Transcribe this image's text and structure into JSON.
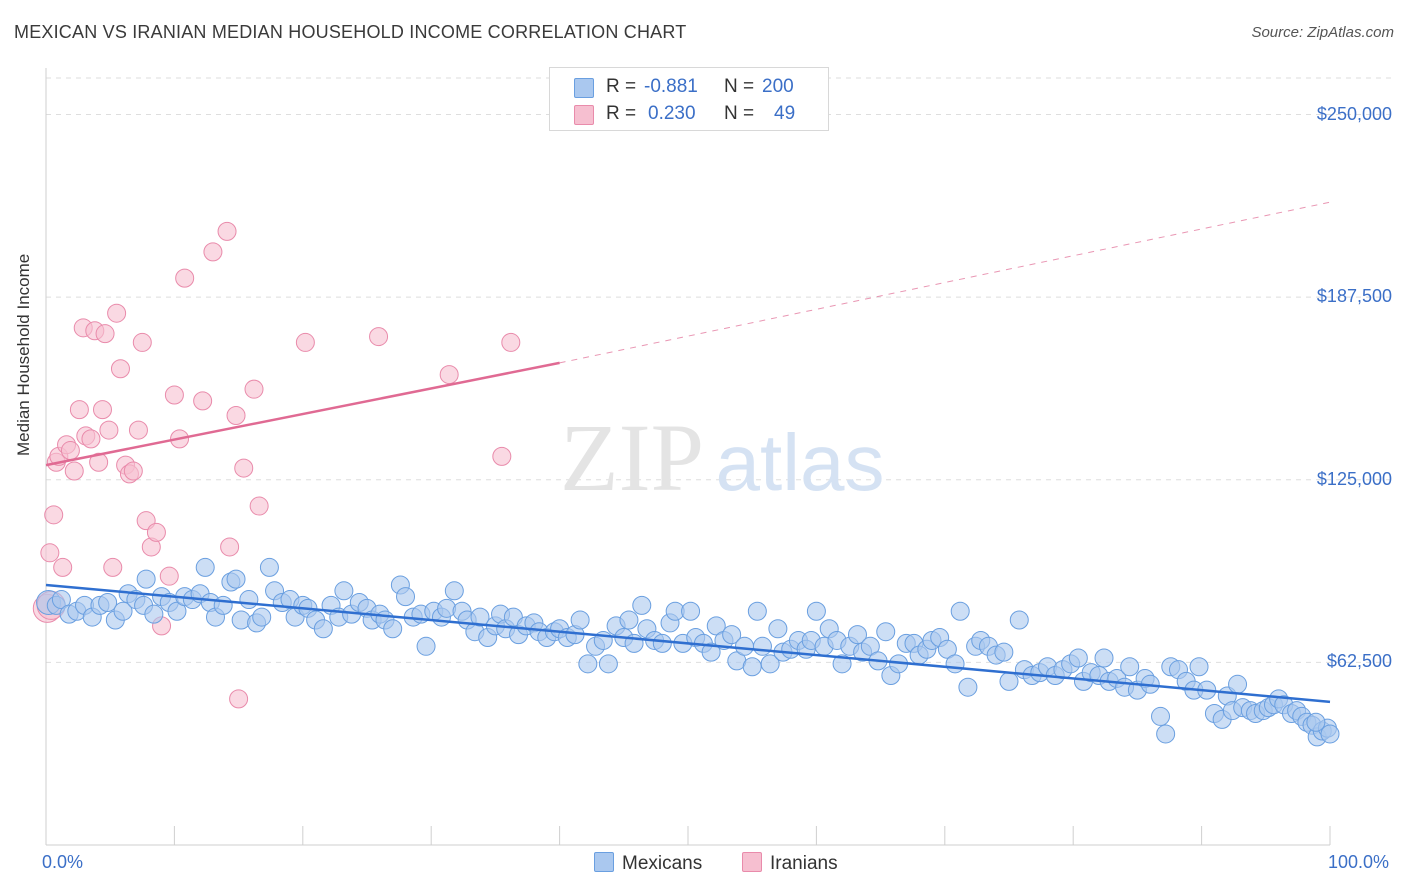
{
  "title": "MEXICAN VS IRANIAN MEDIAN HOUSEHOLD INCOME CORRELATION CHART",
  "source": "Source: ZipAtlas.com",
  "watermark": {
    "zip": "ZIP",
    "atlas": "atlas"
  },
  "colors": {
    "blue_fill": "#aac8ef",
    "blue_stroke": "#6a9fe0",
    "blue_line": "#2f6fd0",
    "pink_fill": "#f6bfd0",
    "pink_stroke": "#e98bab",
    "pink_line": "#e06a93",
    "grid": "#dedede",
    "tick_text": "#3b6fc7"
  },
  "legend": {
    "rows": [
      {
        "r_label": "R =",
        "r_value": "-0.881",
        "n_label": "N =",
        "n_value": "200",
        "color": "#aac8ef",
        "stroke": "#6a9fe0"
      },
      {
        "r_label": "R =",
        "r_value": "0.230",
        "n_label": "N =",
        "n_value": "49",
        "color": "#f6bfd0",
        "stroke": "#e98bab"
      }
    ]
  },
  "bottom_legend": [
    {
      "label": "Mexicans",
      "color": "#aac8ef",
      "stroke": "#6a9fe0"
    },
    {
      "label": "Iranians",
      "color": "#f6bfd0",
      "stroke": "#e98bab"
    }
  ],
  "chart_data": {
    "type": "scatter",
    "title": "MEXICAN VS IRANIAN MEDIAN HOUSEHOLD INCOME CORRELATION CHART",
    "xlabel": "",
    "ylabel": "Median Household Income",
    "xlim": [
      0,
      100
    ],
    "ylim": [
      0,
      262500
    ],
    "x_tick_labels": [
      "0.0%",
      "100.0%"
    ],
    "y_ticks": [
      {
        "value": 62500,
        "label": "$62,500"
      },
      {
        "value": 125000,
        "label": "$125,000"
      },
      {
        "value": 187500,
        "label": "$187,500"
      },
      {
        "value": 250000,
        "label": "$250,000"
      }
    ],
    "grid": true,
    "legend_position": "top-center",
    "series": [
      {
        "name": "Mexicans",
        "r": -0.881,
        "n": 200,
        "trend": {
          "x0": 0,
          "y0": 89000,
          "x1": 100,
          "y1": 49000
        },
        "points": [
          [
            0.2,
            83000
          ],
          [
            0.8,
            82000
          ],
          [
            1.2,
            84000
          ],
          [
            1.8,
            79000
          ],
          [
            2.4,
            80000
          ],
          [
            3.0,
            82000
          ],
          [
            3.6,
            78000
          ],
          [
            4.2,
            82000
          ],
          [
            4.8,
            83000
          ],
          [
            5.4,
            77000
          ],
          [
            6.0,
            80000
          ],
          [
            6.4,
            86000
          ],
          [
            7.0,
            84000
          ],
          [
            7.6,
            82000
          ],
          [
            7.8,
            91000
          ],
          [
            8.4,
            79000
          ],
          [
            9.0,
            85000
          ],
          [
            9.6,
            83000
          ],
          [
            10.2,
            80000
          ],
          [
            10.8,
            85000
          ],
          [
            11.4,
            84000
          ],
          [
            12.0,
            86000
          ],
          [
            12.4,
            95000
          ],
          [
            12.8,
            83000
          ],
          [
            13.2,
            78000
          ],
          [
            13.8,
            82000
          ],
          [
            14.4,
            90000
          ],
          [
            14.8,
            91000
          ],
          [
            15.2,
            77000
          ],
          [
            15.8,
            84000
          ],
          [
            16.4,
            76000
          ],
          [
            16.8,
            78000
          ],
          [
            17.4,
            95000
          ],
          [
            17.8,
            87000
          ],
          [
            18.4,
            83000
          ],
          [
            19.0,
            84000
          ],
          [
            19.4,
            78000
          ],
          [
            20.0,
            82000
          ],
          [
            20.4,
            81000
          ],
          [
            21.0,
            77000
          ],
          [
            21.6,
            74000
          ],
          [
            22.2,
            82000
          ],
          [
            22.8,
            78000
          ],
          [
            23.2,
            87000
          ],
          [
            23.8,
            79000
          ],
          [
            24.4,
            83000
          ],
          [
            25.0,
            81000
          ],
          [
            25.4,
            77000
          ],
          [
            26.0,
            79000
          ],
          [
            26.4,
            77000
          ],
          [
            27.0,
            74000
          ],
          [
            27.6,
            89000
          ],
          [
            28.0,
            85000
          ],
          [
            28.6,
            78000
          ],
          [
            29.2,
            79000
          ],
          [
            29.6,
            68000
          ],
          [
            30.2,
            80000
          ],
          [
            30.8,
            78000
          ],
          [
            31.2,
            81000
          ],
          [
            31.8,
            87000
          ],
          [
            32.4,
            80000
          ],
          [
            32.8,
            77000
          ],
          [
            33.4,
            73000
          ],
          [
            33.8,
            78000
          ],
          [
            34.4,
            71000
          ],
          [
            35.0,
            75000
          ],
          [
            35.4,
            79000
          ],
          [
            35.8,
            74000
          ],
          [
            36.4,
            78000
          ],
          [
            36.8,
            72000
          ],
          [
            37.4,
            75000
          ],
          [
            38.0,
            76000
          ],
          [
            38.4,
            73000
          ],
          [
            39.0,
            71000
          ],
          [
            39.6,
            73000
          ],
          [
            40.0,
            74000
          ],
          [
            40.6,
            71000
          ],
          [
            41.2,
            72000
          ],
          [
            41.6,
            77000
          ],
          [
            42.2,
            62000
          ],
          [
            42.8,
            68000
          ],
          [
            43.4,
            70000
          ],
          [
            43.8,
            62000
          ],
          [
            44.4,
            75000
          ],
          [
            45.0,
            71000
          ],
          [
            45.4,
            77000
          ],
          [
            45.8,
            69000
          ],
          [
            46.4,
            82000
          ],
          [
            46.8,
            74000
          ],
          [
            47.4,
            70000
          ],
          [
            48.0,
            69000
          ],
          [
            48.6,
            76000
          ],
          [
            49.0,
            80000
          ],
          [
            49.6,
            69000
          ],
          [
            50.2,
            80000
          ],
          [
            50.6,
            71000
          ],
          [
            51.2,
            69000
          ],
          [
            51.8,
            66000
          ],
          [
            52.2,
            75000
          ],
          [
            52.8,
            70000
          ],
          [
            53.4,
            72000
          ],
          [
            53.8,
            63000
          ],
          [
            54.4,
            68000
          ],
          [
            55.0,
            61000
          ],
          [
            55.4,
            80000
          ],
          [
            55.8,
            68000
          ],
          [
            56.4,
            62000
          ],
          [
            57.0,
            74000
          ],
          [
            57.4,
            66000
          ],
          [
            58.0,
            67000
          ],
          [
            58.6,
            70000
          ],
          [
            59.2,
            67000
          ],
          [
            59.6,
            70000
          ],
          [
            60.0,
            80000
          ],
          [
            60.6,
            68000
          ],
          [
            61.0,
            74000
          ],
          [
            61.6,
            70000
          ],
          [
            62.0,
            62000
          ],
          [
            62.6,
            68000
          ],
          [
            63.2,
            72000
          ],
          [
            63.6,
            66000
          ],
          [
            64.2,
            68000
          ],
          [
            64.8,
            63000
          ],
          [
            65.4,
            73000
          ],
          [
            65.8,
            58000
          ],
          [
            66.4,
            62000
          ],
          [
            67.0,
            69000
          ],
          [
            67.6,
            69000
          ],
          [
            68.0,
            65000
          ],
          [
            68.6,
            67000
          ],
          [
            69.0,
            70000
          ],
          [
            69.6,
            71000
          ],
          [
            70.2,
            67000
          ],
          [
            70.8,
            62000
          ],
          [
            71.2,
            80000
          ],
          [
            71.8,
            54000
          ],
          [
            72.4,
            68000
          ],
          [
            72.8,
            70000
          ],
          [
            73.4,
            68000
          ],
          [
            74.0,
            65000
          ],
          [
            74.6,
            66000
          ],
          [
            75.0,
            56000
          ],
          [
            75.8,
            77000
          ],
          [
            76.2,
            60000
          ],
          [
            76.8,
            58000
          ],
          [
            77.4,
            59000
          ],
          [
            78.0,
            61000
          ],
          [
            78.6,
            58000
          ],
          [
            79.2,
            60000
          ],
          [
            79.8,
            62000
          ],
          [
            80.4,
            64000
          ],
          [
            80.8,
            56000
          ],
          [
            81.4,
            59000
          ],
          [
            82.0,
            58000
          ],
          [
            82.4,
            64000
          ],
          [
            82.8,
            56000
          ],
          [
            83.4,
            57000
          ],
          [
            84.0,
            54000
          ],
          [
            84.4,
            61000
          ],
          [
            85.0,
            53000
          ],
          [
            85.6,
            57000
          ],
          [
            86.0,
            55000
          ],
          [
            86.8,
            44000
          ],
          [
            87.2,
            38000
          ],
          [
            87.6,
            61000
          ],
          [
            88.2,
            60000
          ],
          [
            88.8,
            56000
          ],
          [
            89.4,
            53000
          ],
          [
            89.8,
            61000
          ],
          [
            90.4,
            53000
          ],
          [
            91.0,
            45000
          ],
          [
            91.6,
            43000
          ],
          [
            92.0,
            51000
          ],
          [
            92.4,
            46000
          ],
          [
            92.8,
            55000
          ],
          [
            93.2,
            47000
          ],
          [
            93.8,
            46000
          ],
          [
            94.2,
            45000
          ],
          [
            94.8,
            46000
          ],
          [
            95.2,
            47000
          ],
          [
            95.6,
            48000
          ],
          [
            96.0,
            50000
          ],
          [
            96.4,
            48000
          ],
          [
            97.0,
            45000
          ],
          [
            97.4,
            46000
          ],
          [
            97.8,
            44000
          ],
          [
            98.2,
            42000
          ],
          [
            98.6,
            41000
          ],
          [
            99.0,
            37000
          ],
          [
            99.4,
            39000
          ],
          [
            99.8,
            40000
          ],
          [
            100.0,
            38000
          ],
          [
            98.9,
            42000
          ]
        ]
      },
      {
        "name": "Iranians",
        "r": 0.23,
        "n": 49,
        "trend": {
          "x0": 0,
          "y0": 130000,
          "x1": 40,
          "y1": 165000,
          "dash_x1": 100,
          "dash_y1": 220000
        },
        "points": [
          [
            0.1,
            81000
          ],
          [
            0.3,
            100000
          ],
          [
            0.6,
            113000
          ],
          [
            0.8,
            131000
          ],
          [
            1.0,
            133000
          ],
          [
            1.3,
            95000
          ],
          [
            1.6,
            137000
          ],
          [
            1.9,
            135000
          ],
          [
            2.2,
            128000
          ],
          [
            2.6,
            149000
          ],
          [
            2.9,
            177000
          ],
          [
            3.1,
            140000
          ],
          [
            3.5,
            139000
          ],
          [
            3.8,
            176000
          ],
          [
            4.1,
            131000
          ],
          [
            4.4,
            149000
          ],
          [
            4.6,
            175000
          ],
          [
            4.9,
            142000
          ],
          [
            5.2,
            95000
          ],
          [
            5.5,
            182000
          ],
          [
            5.8,
            163000
          ],
          [
            6.2,
            130000
          ],
          [
            6.5,
            127000
          ],
          [
            6.8,
            128000
          ],
          [
            7.2,
            142000
          ],
          [
            7.5,
            172000
          ],
          [
            7.8,
            111000
          ],
          [
            8.2,
            102000
          ],
          [
            8.6,
            107000
          ],
          [
            9.0,
            75000
          ],
          [
            9.6,
            92000
          ],
          [
            10.0,
            154000
          ],
          [
            10.4,
            139000
          ],
          [
            10.8,
            194000
          ],
          [
            12.2,
            152000
          ],
          [
            13.0,
            203000
          ],
          [
            14.1,
            210000
          ],
          [
            14.3,
            102000
          ],
          [
            14.8,
            147000
          ],
          [
            15.0,
            50000
          ],
          [
            15.4,
            129000
          ],
          [
            16.2,
            156000
          ],
          [
            16.6,
            116000
          ],
          [
            20.2,
            172000
          ],
          [
            25.9,
            174000
          ],
          [
            31.4,
            161000
          ],
          [
            35.5,
            133000
          ],
          [
            36.2,
            172000
          ],
          [
            0.4,
            82000
          ]
        ]
      }
    ]
  }
}
